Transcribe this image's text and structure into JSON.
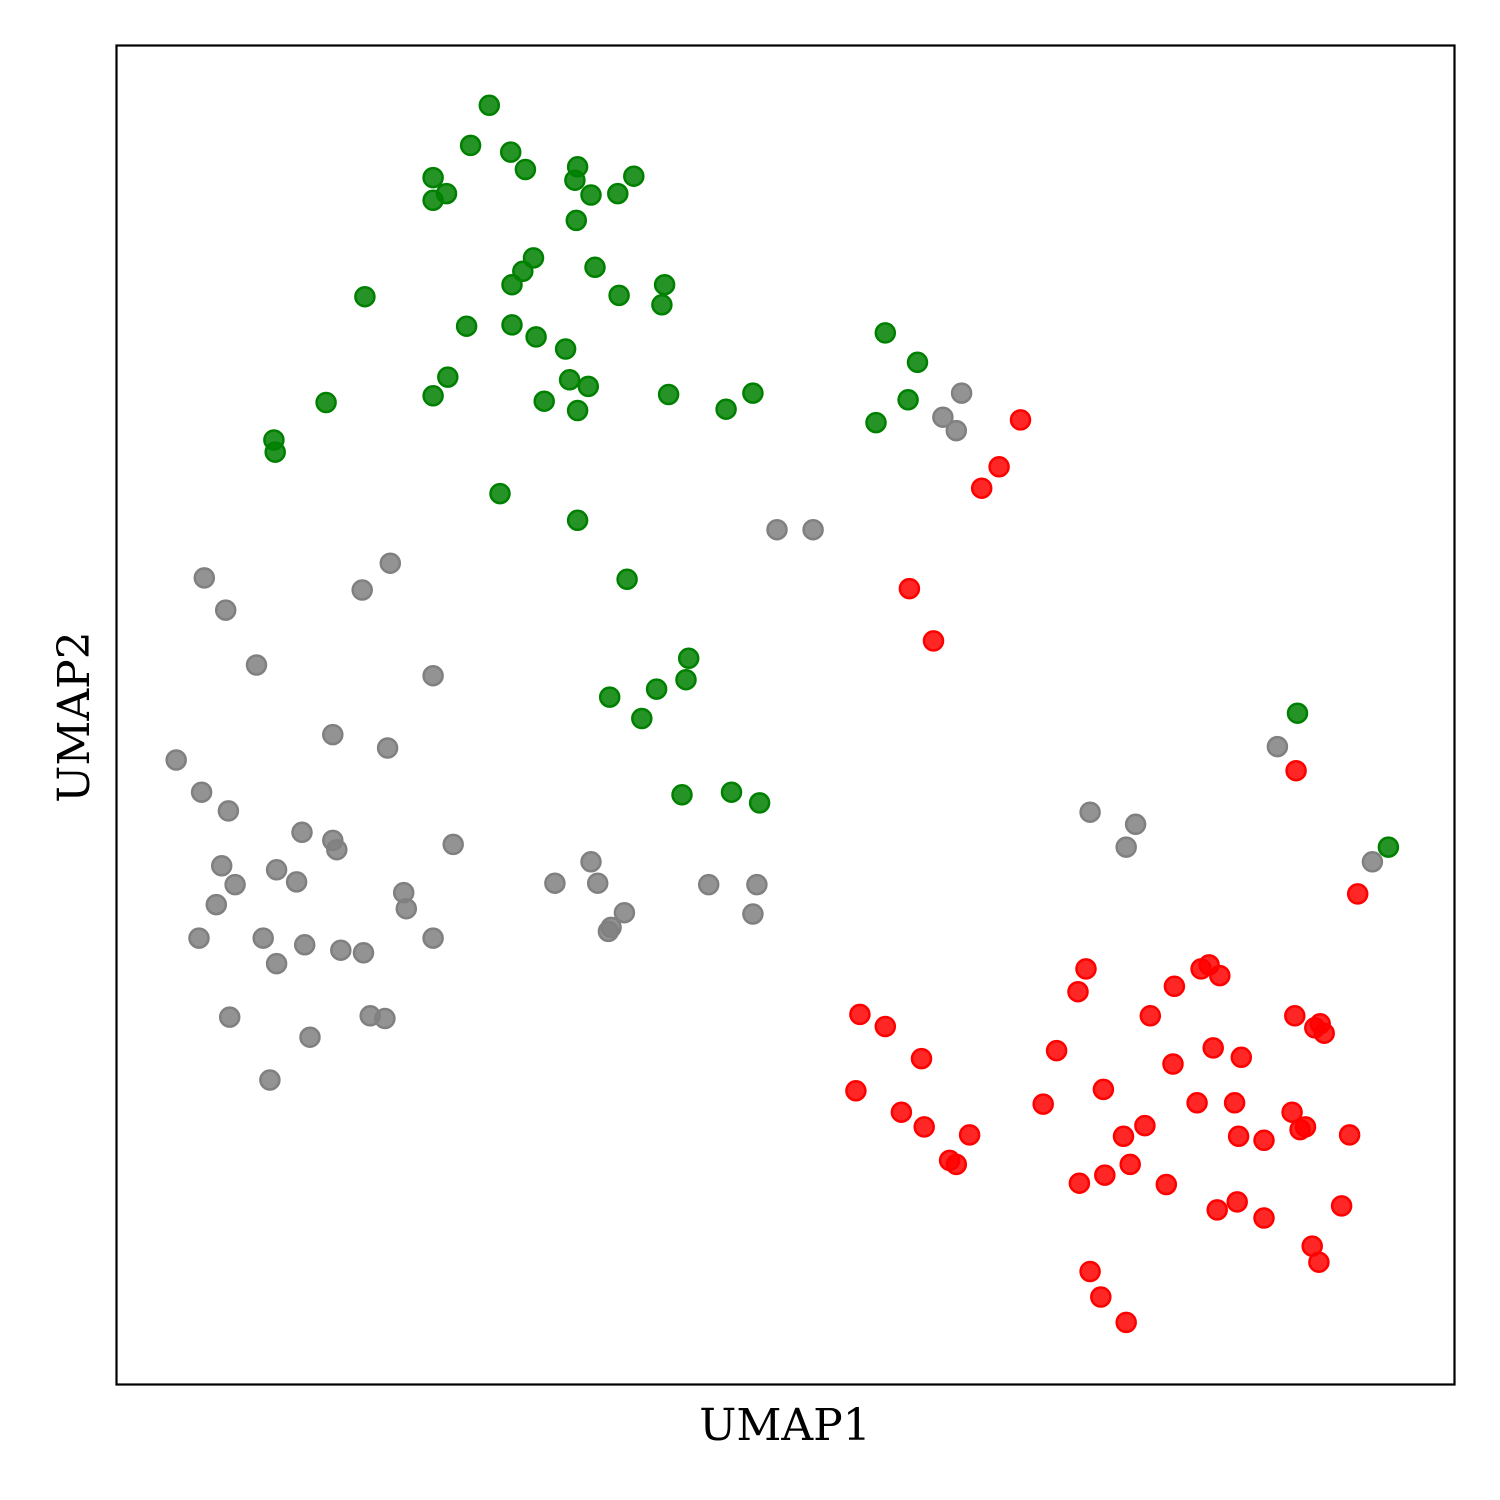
{
  "chart_data": {
    "type": "scatter",
    "title": "",
    "xlabel": "UMAP1",
    "ylabel": "UMAP2",
    "xlim": [
      0,
      100
    ],
    "ylim": [
      0,
      100
    ],
    "xticks": false,
    "yticks": false,
    "grid": false,
    "legend": false,
    "series": [
      {
        "color": "#008000",
        "points": [
          [
            27.9,
            95.5
          ],
          [
            26.5,
            92.5
          ],
          [
            29.5,
            92.0
          ],
          [
            30.6,
            90.7
          ],
          [
            23.7,
            90.1
          ],
          [
            24.7,
            88.9
          ],
          [
            23.7,
            88.4
          ],
          [
            34.5,
            90.9
          ],
          [
            38.7,
            90.2
          ],
          [
            35.5,
            88.8
          ],
          [
            34.3,
            89.9
          ],
          [
            37.5,
            88.9
          ],
          [
            34.4,
            86.9
          ],
          [
            31.2,
            84.1
          ],
          [
            30.4,
            83.1
          ],
          [
            29.6,
            82.1
          ],
          [
            35.8,
            83.4
          ],
          [
            41.0,
            82.1
          ],
          [
            40.8,
            80.6
          ],
          [
            37.6,
            81.3
          ],
          [
            18.6,
            81.2
          ],
          [
            26.2,
            79.0
          ],
          [
            29.6,
            79.1
          ],
          [
            31.4,
            78.2
          ],
          [
            33.6,
            77.3
          ],
          [
            33.9,
            75.0
          ],
          [
            35.3,
            74.5
          ],
          [
            41.3,
            73.9
          ],
          [
            47.6,
            74.0
          ],
          [
            57.5,
            78.5
          ],
          [
            59.9,
            76.3
          ],
          [
            59.2,
            73.5
          ],
          [
            56.8,
            71.8
          ],
          [
            23.7,
            73.8
          ],
          [
            24.8,
            75.2
          ],
          [
            32.0,
            73.4
          ],
          [
            34.5,
            72.7
          ],
          [
            45.6,
            72.8
          ],
          [
            15.7,
            73.3
          ],
          [
            11.8,
            70.5
          ],
          [
            11.9,
            69.6
          ],
          [
            28.7,
            66.5
          ],
          [
            34.5,
            64.5
          ],
          [
            38.2,
            60.1
          ],
          [
            42.8,
            54.2
          ],
          [
            42.6,
            52.6
          ],
          [
            40.4,
            51.9
          ],
          [
            36.9,
            51.3
          ],
          [
            39.3,
            49.7
          ],
          [
            46.0,
            44.2
          ],
          [
            42.3,
            44.0
          ],
          [
            48.1,
            43.4
          ],
          [
            88.3,
            50.1
          ],
          [
            95.1,
            40.1
          ]
        ]
      },
      {
        "color": "#808080",
        "points": [
          [
            63.2,
            74.0
          ],
          [
            61.8,
            72.2
          ],
          [
            62.8,
            71.2
          ],
          [
            49.4,
            63.8
          ],
          [
            52.1,
            63.8
          ],
          [
            20.5,
            61.3
          ],
          [
            6.6,
            60.2
          ],
          [
            18.4,
            59.3
          ],
          [
            8.2,
            57.8
          ],
          [
            10.5,
            53.7
          ],
          [
            23.7,
            52.9
          ],
          [
            16.2,
            48.5
          ],
          [
            20.3,
            47.5
          ],
          [
            4.5,
            46.6
          ],
          [
            6.4,
            44.2
          ],
          [
            8.4,
            42.8
          ],
          [
            13.9,
            41.2
          ],
          [
            16.2,
            40.6
          ],
          [
            16.5,
            39.9
          ],
          [
            25.2,
            40.3
          ],
          [
            7.9,
            38.7
          ],
          [
            12.0,
            38.4
          ],
          [
            13.5,
            37.5
          ],
          [
            8.9,
            37.3
          ],
          [
            21.5,
            36.7
          ],
          [
            7.5,
            35.8
          ],
          [
            21.7,
            35.5
          ],
          [
            35.5,
            39.0
          ],
          [
            36.0,
            37.4
          ],
          [
            32.8,
            37.4
          ],
          [
            44.3,
            37.3
          ],
          [
            47.9,
            37.3
          ],
          [
            38.0,
            35.2
          ],
          [
            47.6,
            35.1
          ],
          [
            37.0,
            34.1
          ],
          [
            36.8,
            33.8
          ],
          [
            6.2,
            33.3
          ],
          [
            11.0,
            33.3
          ],
          [
            23.7,
            33.3
          ],
          [
            12.0,
            31.4
          ],
          [
            18.5,
            32.2
          ],
          [
            14.1,
            32.8
          ],
          [
            16.8,
            32.4
          ],
          [
            8.5,
            27.4
          ],
          [
            19.0,
            27.5
          ],
          [
            20.1,
            27.3
          ],
          [
            14.5,
            25.9
          ],
          [
            11.5,
            22.7
          ],
          [
            86.8,
            47.6
          ],
          [
            72.8,
            42.7
          ],
          [
            76.2,
            41.8
          ],
          [
            75.5,
            40.1
          ],
          [
            93.9,
            39.0
          ]
        ]
      },
      {
        "color": "#ff0000",
        "points": [
          [
            67.6,
            72.0
          ],
          [
            66.0,
            68.5
          ],
          [
            64.7,
            66.9
          ],
          [
            59.3,
            59.4
          ],
          [
            61.1,
            55.5
          ],
          [
            88.2,
            45.8
          ],
          [
            92.8,
            36.6
          ],
          [
            72.5,
            31.0
          ],
          [
            71.9,
            29.3
          ],
          [
            82.5,
            30.5
          ],
          [
            81.7,
            31.3
          ],
          [
            81.1,
            31.0
          ],
          [
            79.1,
            29.7
          ],
          [
            55.6,
            27.6
          ],
          [
            57.5,
            26.7
          ],
          [
            77.3,
            27.5
          ],
          [
            88.1,
            27.5
          ],
          [
            90.0,
            26.9
          ],
          [
            89.6,
            26.6
          ],
          [
            90.3,
            26.2
          ],
          [
            82.0,
            25.1
          ],
          [
            84.1,
            24.4
          ],
          [
            60.2,
            24.3
          ],
          [
            70.3,
            24.9
          ],
          [
            79.0,
            23.9
          ],
          [
            55.3,
            21.9
          ],
          [
            73.8,
            22.0
          ],
          [
            80.8,
            21.0
          ],
          [
            83.6,
            21.0
          ],
          [
            69.3,
            20.9
          ],
          [
            58.7,
            20.3
          ],
          [
            60.4,
            19.2
          ],
          [
            63.8,
            18.6
          ],
          [
            76.9,
            19.3
          ],
          [
            87.9,
            20.3
          ],
          [
            88.5,
            19.0
          ],
          [
            88.9,
            19.2
          ],
          [
            75.3,
            18.5
          ],
          [
            83.9,
            18.5
          ],
          [
            85.8,
            18.2
          ],
          [
            92.2,
            18.6
          ],
          [
            62.3,
            16.7
          ],
          [
            62.8,
            16.4
          ],
          [
            75.8,
            16.4
          ],
          [
            73.9,
            15.6
          ],
          [
            72.0,
            15.0
          ],
          [
            78.5,
            14.9
          ],
          [
            83.8,
            13.6
          ],
          [
            82.3,
            13.0
          ],
          [
            85.8,
            12.4
          ],
          [
            91.6,
            13.3
          ],
          [
            89.4,
            10.3
          ],
          [
            89.9,
            9.1
          ],
          [
            72.8,
            8.4
          ],
          [
            73.6,
            6.5
          ],
          [
            75.5,
            4.6
          ]
        ]
      }
    ]
  }
}
